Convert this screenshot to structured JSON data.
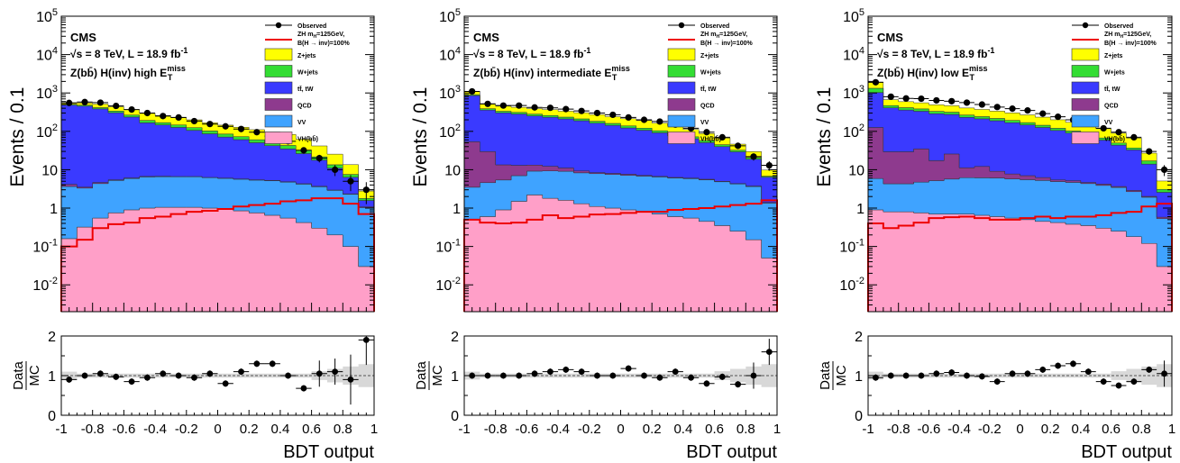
{
  "figure": {
    "experiment": "CMS",
    "energy_label": "√s = 8 TeV, L = 18.9 fb",
    "lumi_exponent": "-1",
    "ytitle": "Events / 0.1",
    "ratio_label_num": "Data",
    "ratio_label_den": "MC",
    "xlabel": "BDT output"
  },
  "legend": {
    "observed": "Observed",
    "signal_line1": "ZH m",
    "signal_sub": "H",
    "signal_line1b": "=125GeV,",
    "signal_line2": "B(H → inv)=100%",
    "zjets": "Z+jets",
    "wjets": "W+jets",
    "ttbar": "tt̄, tW",
    "qcd": "QCD",
    "vv": "VV",
    "vh": "VH(bb̄)"
  },
  "colors": {
    "zjets": "#ffff00",
    "wjets": "#33dd33",
    "ttbar": "#3a3aff",
    "qcd": "#8e3a8e",
    "vv": "#3fa3ff",
    "vh": "#ff9fc8",
    "signal": "#ee0000"
  },
  "chart_data": [
    {
      "type": "area",
      "region": "Z(bb̄) H(inv)  high E",
      "region_sup": "miss",
      "region_sub": "T",
      "log_y": true,
      "xlim": [
        -1,
        1
      ],
      "ylim": [
        0.002,
        100000
      ],
      "ratio_ylim": [
        0,
        2
      ],
      "x_ticks": [
        -1,
        -0.8,
        -0.6,
        -0.4,
        -0.2,
        0,
        0.2,
        0.4,
        0.6,
        0.8,
        1
      ],
      "x_tick_labels": [
        "-1",
        "-0.8",
        "-0.6",
        "-0.4",
        "-0.2",
        "0",
        "0.2",
        "0.4",
        "0.6",
        "0.8",
        "1"
      ],
      "y_ticks": [
        0.01,
        0.1,
        1,
        10,
        100,
        1000,
        10000,
        100000
      ],
      "y_tick_labels": [
        [
          "10",
          "-2"
        ],
        [
          "10",
          "-1"
        ],
        [
          "1",
          ""
        ],
        [
          "10",
          ""
        ],
        [
          "10",
          "2"
        ],
        [
          "10",
          "3"
        ],
        [
          "10",
          "4"
        ],
        [
          "10",
          "5"
        ]
      ],
      "ratio_ticks": [
        0,
        1,
        2
      ],
      "ratio_tick_labels": [
        "0",
        "1",
        "2"
      ],
      "bins": [
        -0.95,
        -0.85,
        -0.75,
        -0.65,
        -0.55,
        -0.45,
        -0.35,
        -0.25,
        -0.15,
        -0.05,
        0.05,
        0.15,
        0.25,
        0.35,
        0.45,
        0.55,
        0.65,
        0.75,
        0.85,
        0.95
      ],
      "stack": {
        "vh": [
          0.16,
          0.32,
          0.55,
          0.75,
          0.9,
          1.0,
          1.05,
          1.05,
          1.05,
          1.0,
          0.95,
          0.85,
          0.75,
          0.65,
          0.55,
          0.42,
          0.3,
          0.2,
          0.1,
          0.03
        ],
        "vv": [
          3.5,
          3.0,
          3.8,
          4.5,
          5.0,
          5.5,
          5.5,
          5.5,
          5.5,
          5.2,
          5.0,
          4.8,
          4.6,
          4.5,
          4.2,
          3.8,
          3.3,
          2.7,
          2.2,
          1.0
        ],
        "qcd": [
          0.5,
          0.2,
          0.3,
          0.2,
          0.2,
          0.2,
          0.2,
          0.1,
          0.1,
          0.1,
          0.1,
          0.1,
          0.1,
          0.1,
          0.1,
          0.1,
          0.1,
          0.05,
          0.05,
          0.05
        ],
        "ttbar": [
          480,
          450,
          380,
          300,
          230,
          160,
          140,
          120,
          100,
          80,
          65,
          55,
          45,
          37,
          30,
          22,
          14,
          8,
          4,
          0.5
        ],
        "wjets": [
          25,
          28,
          30,
          32,
          30,
          26,
          22,
          20,
          18,
          16,
          14,
          12,
          10,
          9,
          8,
          6,
          4,
          2.5,
          1.2,
          0.2
        ],
        "zjets": [
          50,
          70,
          100,
          100,
          100,
          100,
          90,
          80,
          75,
          65,
          60,
          55,
          50,
          45,
          40,
          30,
          20,
          12,
          6,
          1.0
        ]
      },
      "signal": [
        0.1,
        0.15,
        0.3,
        0.38,
        0.42,
        0.55,
        0.6,
        0.7,
        0.8,
        0.85,
        0.95,
        1.1,
        1.2,
        1.3,
        1.5,
        1.6,
        1.8,
        1.8,
        1.3,
        0.7
      ],
      "observed": [
        550,
        580,
        560,
        460,
        370,
        300,
        250,
        230,
        185,
        155,
        135,
        115,
        95,
        75,
        55,
        32,
        20,
        10,
        5,
        3
      ],
      "ratio": [
        0.9,
        1.0,
        1.05,
        0.97,
        0.85,
        0.95,
        1.05,
        1.0,
        0.95,
        1.05,
        0.8,
        1.1,
        1.3,
        1.3,
        1.0,
        0.68,
        1.05,
        1.1,
        0.9,
        1.9
      ]
    },
    {
      "type": "area",
      "region": "Z(bb̄) H(inv)  intermediate E",
      "region_sup": "miss",
      "region_sub": "T",
      "log_y": true,
      "xlim": [
        -1,
        1
      ],
      "ylim": [
        0.002,
        100000
      ],
      "ratio_ylim": [
        0,
        2
      ],
      "x_ticks": [
        -1,
        -0.8,
        -0.6,
        -0.4,
        -0.2,
        0,
        0.2,
        0.4,
        0.6,
        0.8,
        1
      ],
      "x_tick_labels": [
        "-1",
        "-0.8",
        "-0.6",
        "-0.4",
        "-0.2",
        "0",
        "0.2",
        "0.4",
        "0.6",
        "0.8",
        "1"
      ],
      "y_ticks": [
        0.01,
        0.1,
        1,
        10,
        100,
        1000,
        10000,
        100000
      ],
      "y_tick_labels": [
        [
          "10",
          "-2"
        ],
        [
          "10",
          "-1"
        ],
        [
          "1",
          ""
        ],
        [
          "10",
          ""
        ],
        [
          "10",
          "2"
        ],
        [
          "10",
          "3"
        ],
        [
          "10",
          "4"
        ],
        [
          "10",
          "5"
        ]
      ],
      "ratio_ticks": [
        0,
        1,
        2
      ],
      "ratio_tick_labels": [
        "0",
        "1",
        "2"
      ],
      "bins": [
        -0.95,
        -0.85,
        -0.75,
        -0.65,
        -0.55,
        -0.45,
        -0.35,
        -0.25,
        -0.15,
        -0.05,
        0.05,
        0.15,
        0.25,
        0.35,
        0.45,
        0.55,
        0.65,
        0.75,
        0.85,
        0.95
      ],
      "stack": {
        "vh": [
          0.5,
          0.6,
          0.9,
          1.5,
          2.2,
          1.8,
          1.6,
          1.3,
          1.1,
          1.0,
          0.9,
          0.8,
          0.7,
          0.6,
          0.55,
          0.45,
          0.35,
          0.25,
          0.15,
          0.05
        ],
        "vv": [
          3.0,
          4.0,
          4.5,
          5.5,
          7.0,
          7.5,
          7.5,
          7.0,
          6.8,
          6.5,
          6.2,
          6.0,
          5.8,
          5.5,
          5.3,
          5.0,
          4.5,
          4.0,
          3.5,
          1.3
        ],
        "qcd": [
          50,
          25,
          8,
          6,
          4,
          3,
          2,
          1,
          0.5,
          0.5,
          0.5,
          0.3,
          0.2,
          0.2,
          0.2,
          0.2,
          0.1,
          0.1,
          0.1,
          0.05
        ],
        "ttbar": [
          800,
          330,
          290,
          270,
          240,
          220,
          200,
          180,
          155,
          135,
          115,
          100,
          85,
          70,
          58,
          45,
          35,
          25,
          15,
          5
        ],
        "wjets": [
          50,
          30,
          30,
          30,
          28,
          26,
          24,
          22,
          20,
          18,
          16,
          14,
          12,
          10,
          8,
          7,
          5,
          3,
          2,
          0.4
        ],
        "zjets": [
          200,
          120,
          120,
          110,
          110,
          110,
          100,
          95,
          90,
          80,
          75,
          70,
          60,
          50,
          40,
          30,
          22,
          14,
          9,
          3
        ]
      },
      "signal": [
        0.5,
        0.42,
        0.4,
        0.42,
        0.5,
        0.65,
        0.55,
        0.6,
        0.68,
        0.7,
        0.75,
        0.8,
        0.8,
        0.9,
        0.95,
        1.0,
        1.1,
        1.2,
        1.3,
        1.6
      ],
      "observed": [
        1100,
        520,
        470,
        470,
        420,
        410,
        380,
        340,
        300,
        270,
        230,
        200,
        180,
        150,
        120,
        95,
        70,
        42,
        22,
        13
      ],
      "ratio": [
        1.0,
        1.0,
        1.0,
        1.0,
        1.05,
        1.1,
        1.15,
        1.1,
        1.0,
        1.0,
        1.18,
        1.0,
        0.95,
        1.1,
        0.95,
        0.8,
        0.97,
        0.78,
        1.0,
        1.6
      ]
    },
    {
      "type": "area",
      "region": "Z(bb̄) H(inv)  low E",
      "region_sup": "miss",
      "region_sub": "T",
      "log_y": true,
      "xlim": [
        -1,
        1
      ],
      "ylim": [
        0.002,
        100000
      ],
      "ratio_ylim": [
        0,
        2
      ],
      "x_ticks": [
        -1,
        -0.8,
        -0.6,
        -0.4,
        -0.2,
        0,
        0.2,
        0.4,
        0.6,
        0.8,
        1
      ],
      "x_tick_labels": [
        "-1",
        "-0.8",
        "-0.6",
        "-0.4",
        "-0.2",
        "0",
        "0.2",
        "0.4",
        "0.6",
        "0.8",
        "1"
      ],
      "y_ticks": [
        0.01,
        0.1,
        1,
        10,
        100,
        1000,
        10000,
        100000
      ],
      "y_tick_labels": [
        [
          "10",
          "-2"
        ],
        [
          "10",
          "-1"
        ],
        [
          "1",
          ""
        ],
        [
          "10",
          ""
        ],
        [
          "10",
          "2"
        ],
        [
          "10",
          "3"
        ],
        [
          "10",
          "4"
        ],
        [
          "10",
          "5"
        ]
      ],
      "ratio_ticks": [
        0,
        1,
        2
      ],
      "ratio_tick_labels": [
        "0",
        "1",
        "2"
      ],
      "bins": [
        -0.95,
        -0.85,
        -0.75,
        -0.65,
        -0.55,
        -0.45,
        -0.35,
        -0.25,
        -0.15,
        -0.05,
        0.05,
        0.15,
        0.25,
        0.35,
        0.45,
        0.55,
        0.65,
        0.75,
        0.85,
        0.95
      ],
      "stack": {
        "vh": [
          0.9,
          0.8,
          0.8,
          0.75,
          0.7,
          0.7,
          0.7,
          0.65,
          0.6,
          0.55,
          0.5,
          0.45,
          0.42,
          0.38,
          0.35,
          0.3,
          0.25,
          0.18,
          0.12,
          0.03
        ],
        "vv": [
          5.0,
          3.5,
          3.5,
          4.0,
          4.5,
          5.0,
          5.5,
          5.5,
          5.5,
          5.2,
          5.0,
          4.8,
          4.5,
          4.3,
          4.0,
          3.6,
          3.2,
          2.5,
          1.8,
          0.5
        ],
        "qcd": [
          120,
          25,
          25,
          30,
          12,
          20,
          5,
          6,
          3,
          2,
          1.5,
          1.0,
          0.5,
          0.5,
          0.3,
          0.3,
          0.2,
          0.2,
          0.1,
          0.05
        ],
        "ttbar": [
          900,
          380,
          330,
          300,
          270,
          250,
          220,
          200,
          180,
          160,
          140,
          120,
          100,
          85,
          70,
          55,
          40,
          30,
          12,
          2
        ],
        "wjets": [
          300,
          60,
          55,
          50,
          45,
          40,
          35,
          30,
          28,
          25,
          22,
          18,
          15,
          12,
          10,
          8,
          6,
          4,
          3,
          0.5
        ],
        "zjets": [
          600,
          200,
          180,
          170,
          160,
          150,
          140,
          130,
          120,
          110,
          100,
          90,
          80,
          70,
          60,
          50,
          40,
          30,
          10,
          2
        ]
      },
      "signal": [
        0.4,
        0.3,
        0.35,
        0.42,
        0.55,
        0.58,
        0.6,
        0.55,
        0.5,
        0.5,
        0.55,
        0.6,
        0.55,
        0.6,
        0.6,
        0.65,
        0.75,
        0.8,
        1.1,
        1.3
      ],
      "observed": [
        1900,
        800,
        720,
        710,
        640,
        610,
        560,
        500,
        430,
        390,
        350,
        290,
        240,
        200,
        160,
        120,
        95,
        70,
        30,
        10
      ],
      "ratio": [
        0.95,
        1.0,
        1.0,
        1.0,
        1.05,
        1.08,
        1.0,
        0.98,
        0.85,
        1.05,
        1.05,
        1.15,
        1.25,
        1.3,
        1.1,
        0.85,
        0.75,
        0.85,
        1.15,
        1.05
      ]
    }
  ]
}
